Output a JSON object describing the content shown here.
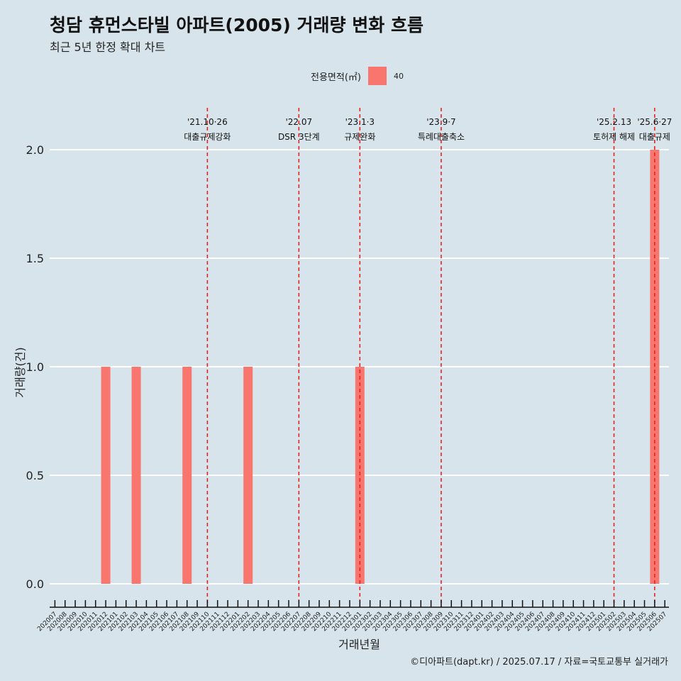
{
  "title": "청담 휴먼스타빌 아파트(2005) 거래량 변화 흐름",
  "subtitle": "최근 5년 한정 확대 차트",
  "caption": "©디아파트(dapt.kr) / 2025.07.17 / 자료=국토교통부 실거래가",
  "colors": {
    "bar": "#f8766d",
    "event_line": "#e8231f",
    "background": "#d7e4eb",
    "grid": "#ffffff"
  },
  "chart_data": {
    "type": "bar",
    "xlabel": "거래년월",
    "ylabel": "거래량(건)",
    "ylim": [
      0,
      2
    ],
    "yticks": [
      "0.0",
      "0.5",
      "1.0",
      "1.5",
      "2.0"
    ],
    "legend": {
      "title": "전용면적(㎡)",
      "position": "top",
      "entries": [
        "40"
      ]
    },
    "categories": [
      "202007",
      "202008",
      "202009",
      "202010",
      "202011",
      "202012",
      "202101",
      "202102",
      "202103",
      "202104",
      "202105",
      "202106",
      "202107",
      "202108",
      "202109",
      "202110",
      "202111",
      "202112",
      "202201",
      "202202",
      "202203",
      "202204",
      "202205",
      "202206",
      "202207",
      "202208",
      "202209",
      "202210",
      "202211",
      "202212",
      "202301",
      "202302",
      "202303",
      "202304",
      "202305",
      "202306",
      "202307",
      "202308",
      "202309",
      "202310",
      "202311",
      "202312",
      "202401",
      "202402",
      "202403",
      "202404",
      "202405",
      "202406",
      "202407",
      "202408",
      "202409",
      "202410",
      "202411",
      "202412",
      "202501",
      "202502",
      "202503",
      "202504",
      "202505",
      "202506",
      "202507"
    ],
    "series": [
      {
        "name": "40",
        "values": [
          0,
          0,
          0,
          0,
          0,
          1,
          0,
          0,
          1,
          0,
          0,
          0,
          0,
          1,
          0,
          0,
          0,
          0,
          0,
          1,
          0,
          0,
          0,
          0,
          0,
          0,
          0,
          0,
          0,
          0,
          1,
          0,
          0,
          0,
          0,
          0,
          0,
          0,
          0,
          0,
          0,
          0,
          0,
          0,
          0,
          0,
          0,
          0,
          0,
          0,
          0,
          0,
          0,
          0,
          0,
          0,
          0,
          0,
          0,
          2,
          0
        ]
      }
    ],
    "events": [
      {
        "x": "202110",
        "date": "'21.10·26",
        "label": "대출규제강화"
      },
      {
        "x": "202207",
        "date": "'22.07",
        "label": "DSR 3단계"
      },
      {
        "x": "202301",
        "date": "'23.1·3",
        "label": "규제완화"
      },
      {
        "x": "202309",
        "date": "'23.9·7",
        "label": "특례대출축소"
      },
      {
        "x": "202502",
        "date": "'25.2.13",
        "label": "토허제 해제"
      },
      {
        "x": "202506",
        "date": "'25.6·27",
        "label": "대출규제"
      }
    ],
    "grid": true
  }
}
